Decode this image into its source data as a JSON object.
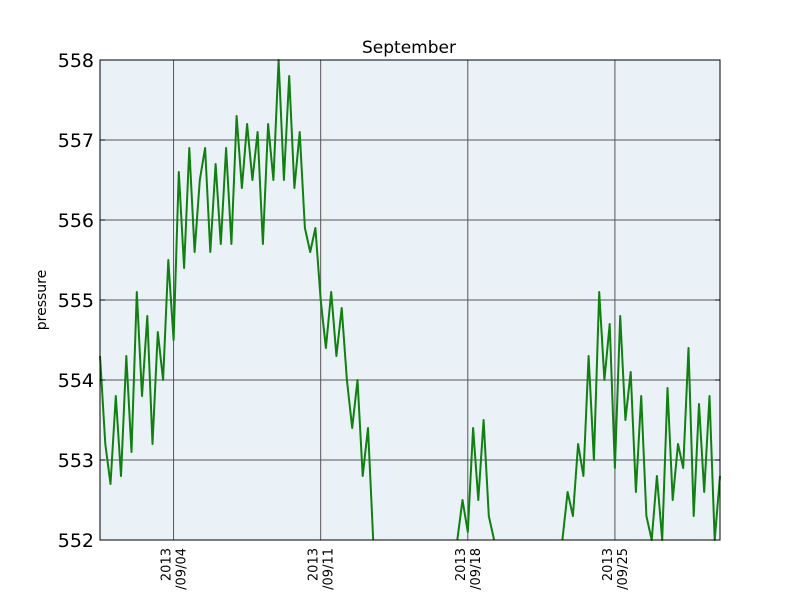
{
  "chart_data": {
    "type": "line",
    "title": "September",
    "xlabel": "",
    "ylabel": "pressure",
    "xlim": [
      "2013-08-31T12:00",
      "2013-09-30T00:00"
    ],
    "ylim": [
      552,
      558
    ],
    "grid": true,
    "y_ticks": [
      "552",
      "553",
      "554",
      "555",
      "556",
      "557",
      "558"
    ],
    "x_ticks": [
      {
        "date": "2013-09-04T00:00",
        "line1": "2013",
        "line2": "/09/04"
      },
      {
        "date": "2013-09-11T00:00",
        "line1": "2013",
        "line2": "/09/11"
      },
      {
        "date": "2013-09-18T00:00",
        "line1": "2013",
        "line2": "/09/18"
      },
      {
        "date": "2013-09-25T00:00",
        "line1": "2013",
        "line2": "/09/25"
      }
    ],
    "colors": {
      "line": "#108010",
      "plot_bg": "#eaf2f8",
      "grid": "#555555"
    },
    "series": [
      {
        "x": [
          "2013-08-31T12:00",
          "2013-08-31T18:00",
          "2013-09-01T00:00",
          "2013-09-01T06:00",
          "2013-09-01T12:00",
          "2013-09-01T18:00",
          "2013-09-02T00:00",
          "2013-09-02T06:00",
          "2013-09-02T12:00",
          "2013-09-02T18:00",
          "2013-09-03T00:00",
          "2013-09-03T06:00",
          "2013-09-03T12:00",
          "2013-09-03T18:00",
          "2013-09-04T00:00",
          "2013-09-04T06:00",
          "2013-09-04T12:00",
          "2013-09-04T18:00",
          "2013-09-05T00:00",
          "2013-09-05T06:00",
          "2013-09-05T12:00",
          "2013-09-05T18:00",
          "2013-09-06T00:00",
          "2013-09-06T06:00",
          "2013-09-06T12:00",
          "2013-09-06T18:00",
          "2013-09-07T00:00",
          "2013-09-07T06:00",
          "2013-09-07T12:00",
          "2013-09-07T18:00",
          "2013-09-08T00:00",
          "2013-09-08T06:00",
          "2013-09-08T12:00",
          "2013-09-08T18:00",
          "2013-09-09T00:00",
          "2013-09-09T06:00",
          "2013-09-09T12:00",
          "2013-09-09T18:00",
          "2013-09-10T00:00",
          "2013-09-10T06:00",
          "2013-09-10T12:00",
          "2013-09-10T18:00",
          "2013-09-11T00:00",
          "2013-09-11T06:00",
          "2013-09-11T12:00",
          "2013-09-11T18:00",
          "2013-09-12T00:00",
          "2013-09-12T06:00",
          "2013-09-12T12:00",
          "2013-09-12T18:00",
          "2013-09-13T00:00",
          "2013-09-13T06:00",
          "2013-09-13T12:00"
        ],
        "values": [
          554.3,
          553.2,
          552.7,
          553.8,
          552.8,
          554.3,
          553.1,
          555.1,
          553.8,
          554.8,
          553.2,
          554.6,
          554.0,
          555.5,
          554.5,
          556.6,
          555.4,
          556.9,
          555.6,
          556.5,
          556.9,
          555.6,
          556.7,
          555.7,
          556.9,
          555.7,
          557.3,
          556.4,
          557.2,
          556.5,
          557.1,
          555.7,
          557.2,
          556.5,
          558.0,
          556.5,
          557.8,
          556.4,
          557.1,
          555.9,
          555.6,
          555.9,
          555.0,
          554.4,
          555.1,
          554.3,
          554.9,
          554.0,
          553.4,
          554.0,
          552.8,
          553.4,
          552.0
        ]
      },
      {
        "x": [
          "2013-09-17T12:00",
          "2013-09-17T18:00",
          "2013-09-18T00:00",
          "2013-09-18T06:00",
          "2013-09-18T12:00",
          "2013-09-18T18:00",
          "2013-09-19T00:00",
          "2013-09-19T06:00"
        ],
        "values": [
          552.0,
          552.5,
          552.1,
          553.4,
          552.5,
          553.5,
          552.3,
          552.0
        ]
      },
      {
        "x": [
          "2013-09-22T12:00",
          "2013-09-22T18:00",
          "2013-09-23T00:00",
          "2013-09-23T06:00",
          "2013-09-23T12:00",
          "2013-09-23T18:00",
          "2013-09-24T00:00",
          "2013-09-24T06:00",
          "2013-09-24T12:00",
          "2013-09-24T18:00",
          "2013-09-25T00:00",
          "2013-09-25T06:00",
          "2013-09-25T12:00",
          "2013-09-25T18:00",
          "2013-09-26T00:00",
          "2013-09-26T06:00",
          "2013-09-26T12:00",
          "2013-09-26T18:00",
          "2013-09-27T00:00",
          "2013-09-27T06:00",
          "2013-09-27T12:00",
          "2013-09-27T18:00",
          "2013-09-28T00:00",
          "2013-09-28T06:00",
          "2013-09-28T12:00",
          "2013-09-28T18:00",
          "2013-09-29T00:00",
          "2013-09-29T06:00",
          "2013-09-29T12:00",
          "2013-09-29T18:00",
          "2013-09-30T00:00"
        ],
        "values": [
          552.0,
          552.6,
          552.3,
          553.2,
          552.8,
          554.3,
          553.0,
          555.1,
          554.0,
          554.7,
          552.9,
          554.8,
          553.5,
          554.1,
          552.6,
          553.8,
          552.3,
          552.0,
          552.8,
          552.0,
          553.9,
          552.5,
          553.2,
          552.9,
          554.4,
          552.3,
          553.7,
          552.6,
          553.8,
          552.0,
          552.8
        ]
      }
    ]
  }
}
